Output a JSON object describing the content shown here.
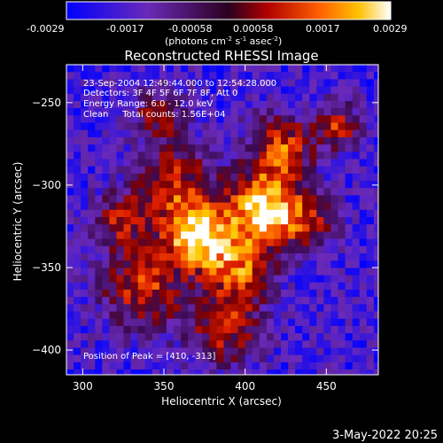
{
  "colorbar": {
    "ticks": [
      "-0.0029",
      "-0.0017",
      "-0.00058",
      "0.00058",
      "0.0017",
      "0.0029"
    ],
    "units_prefix": "(photons cm",
    "units_exp1": "-2",
    "units_mid": " s",
    "units_exp2": "-1",
    "units_mid2": " asec",
    "units_exp3": "-2",
    "units_suffix": ")"
  },
  "chart_data": {
    "type": "heatmap",
    "title": "Reconstructed RHESSI Image",
    "xlabel": "Heliocentric X (arcsec)",
    "ylabel": "Heliocentric Y (arcsec)",
    "xlim": [
      290,
      482
    ],
    "ylim": [
      -415,
      -227
    ],
    "xticks": [
      300,
      350,
      400,
      450
    ],
    "yticks": [
      -250,
      -300,
      -350,
      -400
    ],
    "colorscale_range": [
      -0.0029,
      0.0029
    ],
    "peak_position": [
      410,
      -313
    ],
    "annotations": [
      "23-Sep-2004 12:49:44.000 to 12:54:28.000",
      "Detectors: 3F 4F 5F 6F 7F 8F, Att 0",
      "Energy Range: 6.0 - 12.0 keV",
      "Clean     Total counts: 1.56E+04"
    ],
    "peak_label": "Position of Peak = [410, -313]"
  },
  "footer": {
    "date": "3-May-2022 20:25"
  }
}
